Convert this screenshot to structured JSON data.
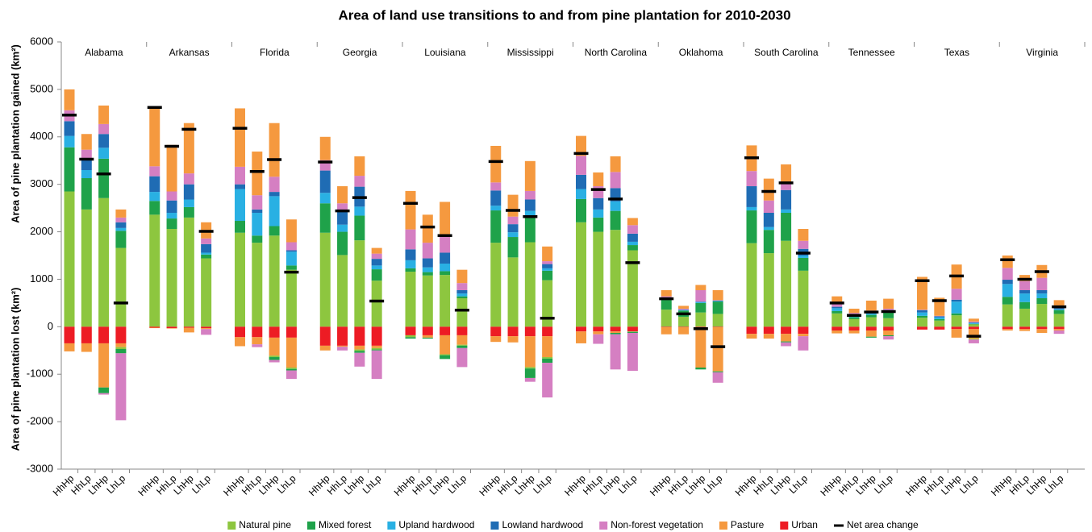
{
  "chart_data": {
    "type": "stacked-bar",
    "title": "Area of land use transitions to and from pine plantation for 2010-2030",
    "y_label_top": "Area of pine plantation gained  (km²)",
    "y_label_bottom": "Area of pine plantation lost  (km²)",
    "ylim": [
      -3000,
      6000
    ],
    "yticks": [
      -3000,
      -2000,
      -1000,
      0,
      1000,
      2000,
      3000,
      4000,
      5000,
      6000
    ],
    "groups": [
      "Alabama",
      "Arkansas",
      "Florida",
      "Georgia",
      "Louisiana",
      "Mississippi",
      "North Carolina",
      "Oklahoma",
      "South Carolina",
      "Tennessee",
      "Texas",
      "Virginia"
    ],
    "categories": [
      "HhHp",
      "HhLp",
      "LhHp",
      "LhLp",
      "HhHp",
      "HhLp",
      "LhHp",
      "LhLp",
      "HhHp",
      "HhLp",
      "LhHp",
      "LhLp",
      "HhHp",
      "HhLp",
      "LhHp",
      "LhLp",
      "HhHp",
      "HhLp",
      "LhHp",
      "LhLp",
      "HhHp",
      "HhLp",
      "LhHp",
      "LhLp",
      "HhHp",
      "HhLp",
      "LhHp",
      "LhLp",
      "HhHp",
      "HhLp",
      "LhHp",
      "LhLp",
      "HhHp",
      "HhLp",
      "LhHp",
      "LhLp",
      "HhHp",
      "HhLp",
      "LhHp",
      "LhLp",
      "HhHp",
      "HhLp",
      "LhHp",
      "LhLp",
      "HhHp",
      "HhLp",
      "LhHp",
      "LhLp"
    ],
    "series": [
      {
        "name": "Natural pine",
        "color": "#8dc63f",
        "gained": [
          2850,
          2470,
          2710,
          1660,
          2360,
          2060,
          2300,
          1440,
          1980,
          1770,
          1920,
          1200,
          1980,
          1510,
          1820,
          970,
          1160,
          1080,
          1090,
          600,
          1770,
          1460,
          1780,
          980,
          2200,
          2000,
          2040,
          1610,
          360,
          210,
          300,
          270,
          1760,
          1550,
          1810,
          1180,
          280,
          160,
          200,
          180,
          190,
          130,
          240,
          50,
          470,
          380,
          480,
          270
        ],
        "lost": [
          0,
          0,
          0,
          -40,
          0,
          0,
          0,
          0,
          0,
          0,
          -30,
          -30,
          0,
          0,
          -30,
          -30,
          -40,
          0,
          -20,
          -20,
          0,
          0,
          -30,
          -30,
          0,
          0,
          0,
          -10,
          0,
          0,
          0,
          0,
          0,
          0,
          0,
          0,
          0,
          0,
          0,
          0,
          0,
          0,
          0,
          -20,
          0,
          0,
          0,
          0
        ]
      },
      {
        "name": "Mixed forest",
        "color": "#1fa24a",
        "gained": [
          930,
          660,
          830,
          360,
          290,
          220,
          220,
          80,
          250,
          150,
          200,
          90,
          620,
          490,
          520,
          240,
          70,
          70,
          80,
          40,
          680,
          430,
          540,
          200,
          490,
          300,
          400,
          110,
          210,
          130,
          200,
          260,
          690,
          490,
          590,
          270,
          50,
          40,
          50,
          140,
          40,
          30,
          40,
          10,
          160,
          140,
          120,
          80
        ],
        "lost": [
          0,
          0,
          -120,
          -90,
          0,
          0,
          0,
          0,
          0,
          0,
          -60,
          -30,
          0,
          0,
          -40,
          -20,
          -30,
          -20,
          -80,
          -50,
          0,
          0,
          -200,
          -90,
          0,
          0,
          -30,
          -20,
          0,
          0,
          -40,
          -20,
          0,
          0,
          -20,
          0,
          0,
          0,
          -20,
          -20,
          0,
          0,
          0,
          0,
          0,
          0,
          0,
          0
        ]
      },
      {
        "name": "Upland hardwood",
        "color": "#29b0e3",
        "gained": [
          240,
          170,
          230,
          60,
          190,
          120,
          160,
          40,
          670,
          480,
          630,
          290,
          220,
          150,
          190,
          80,
          170,
          100,
          160,
          60,
          100,
          100,
          120,
          50,
          210,
          170,
          200,
          70,
          10,
          10,
          20,
          10,
          70,
          60,
          70,
          50,
          60,
          30,
          30,
          10,
          70,
          40,
          250,
          20,
          270,
          180,
          100,
          20
        ],
        "lost": [
          0,
          0,
          0,
          0,
          0,
          0,
          0,
          0,
          0,
          0,
          0,
          0,
          0,
          0,
          0,
          0,
          0,
          0,
          0,
          0,
          0,
          0,
          0,
          0,
          0,
          0,
          0,
          0,
          0,
          0,
          0,
          0,
          0,
          0,
          0,
          0,
          0,
          0,
          0,
          0,
          0,
          0,
          0,
          0,
          0,
          0,
          0,
          0
        ]
      },
      {
        "name": "Lowland hardwood",
        "color": "#1f6cb4",
        "gained": [
          310,
          230,
          290,
          120,
          330,
          260,
          320,
          180,
          100,
          70,
          90,
          30,
          470,
          280,
          420,
          140,
          230,
          190,
          230,
          70,
          320,
          170,
          240,
          90,
          300,
          240,
          280,
          170,
          20,
          10,
          10,
          10,
          440,
          300,
          410,
          140,
          30,
          20,
          20,
          20,
          50,
          20,
          40,
          10,
          90,
          70,
          70,
          20
        ],
        "lost": [
          0,
          0,
          0,
          0,
          0,
          0,
          0,
          0,
          0,
          0,
          0,
          0,
          0,
          0,
          0,
          0,
          0,
          0,
          0,
          0,
          0,
          0,
          0,
          0,
          0,
          0,
          0,
          0,
          0,
          0,
          0,
          0,
          0,
          0,
          0,
          0,
          0,
          0,
          0,
          0,
          0,
          0,
          0,
          0,
          0,
          0,
          0,
          0
        ]
      },
      {
        "name": "Non-forest vegetation",
        "color": "#d57fc2",
        "gained": [
          230,
          200,
          210,
          100,
          210,
          190,
          230,
          120,
          370,
          300,
          320,
          170,
          220,
          170,
          230,
          110,
          420,
          330,
          340,
          150,
          170,
          160,
          180,
          60,
          400,
          250,
          340,
          180,
          40,
          20,
          240,
          10,
          320,
          260,
          150,
          170,
          60,
          40,
          40,
          30,
          10,
          10,
          230,
          20,
          250,
          190,
          260,
          40
        ],
        "lost": [
          0,
          0,
          -30,
          -1410,
          0,
          0,
          0,
          -120,
          0,
          -60,
          -50,
          -180,
          0,
          -80,
          -290,
          -600,
          0,
          0,
          0,
          -400,
          0,
          0,
          -80,
          -730,
          0,
          -200,
          -740,
          -800,
          0,
          0,
          0,
          -220,
          0,
          0,
          -80,
          -300,
          0,
          0,
          0,
          -70,
          0,
          0,
          0,
          -80,
          0,
          0,
          0,
          -70
        ]
      },
      {
        "name": "Pasture",
        "color": "#f5993f",
        "gained": [
          440,
          330,
          390,
          170,
          1250,
          980,
          1060,
          340,
          1230,
          920,
          1130,
          480,
          490,
          360,
          410,
          120,
          810,
          590,
          730,
          280,
          770,
          460,
          630,
          310,
          420,
          290,
          330,
          150,
          130,
          60,
          110,
          210,
          540,
          460,
          390,
          250,
          160,
          90,
          210,
          210,
          690,
          380,
          510,
          60,
          260,
          130,
          270,
          130
        ],
        "lost": [
          -170,
          -180,
          -930,
          -80,
          -10,
          -10,
          -100,
          -20,
          -190,
          -150,
          -380,
          -630,
          -100,
          -20,
          -80,
          -50,
          0,
          -50,
          -400,
          -200,
          -120,
          -130,
          -650,
          -440,
          -250,
          -60,
          -30,
          0,
          -150,
          -150,
          -850,
          -930,
          -100,
          -100,
          -160,
          -50,
          -60,
          -60,
          -130,
          -100,
          0,
          0,
          -180,
          -200,
          -30,
          -40,
          -80,
          -30
        ]
      },
      {
        "name": "Urban",
        "color": "#ed1c24",
        "gained": [
          0,
          0,
          0,
          0,
          0,
          0,
          0,
          0,
          0,
          0,
          0,
          0,
          0,
          0,
          0,
          0,
          0,
          0,
          0,
          0,
          0,
          0,
          0,
          0,
          0,
          0,
          0,
          0,
          0,
          0,
          0,
          0,
          0,
          0,
          0,
          0,
          0,
          0,
          0,
          0,
          0,
          0,
          0,
          0,
          0,
          0,
          0,
          0
        ],
        "lost": [
          -350,
          -350,
          -350,
          -350,
          -20,
          -30,
          -20,
          -30,
          -220,
          -220,
          -230,
          -230,
          -400,
          -400,
          -400,
          -400,
          -180,
          -180,
          -180,
          -180,
          -200,
          -200,
          -200,
          -200,
          -100,
          -100,
          -100,
          -100,
          -10,
          -10,
          -10,
          -10,
          -150,
          -150,
          -150,
          -150,
          -80,
          -80,
          -80,
          -80,
          -60,
          -60,
          -50,
          -50,
          -50,
          -50,
          -50,
          -50
        ]
      }
    ],
    "net": {
      "name": "Net area change",
      "color": "#000000",
      "values": [
        4460,
        3530,
        3220,
        500,
        4620,
        3800,
        4160,
        2010,
        4180,
        3270,
        3520,
        1150,
        3470,
        2440,
        2720,
        540,
        2600,
        2100,
        1920,
        350,
        3480,
        2450,
        2320,
        180,
        3650,
        2890,
        2690,
        1350,
        590,
        270,
        -40,
        -420,
        3560,
        2850,
        3030,
        1550,
        500,
        240,
        310,
        320,
        970,
        550,
        1070,
        -200,
        1410,
        1000,
        1160,
        420
      ]
    }
  }
}
